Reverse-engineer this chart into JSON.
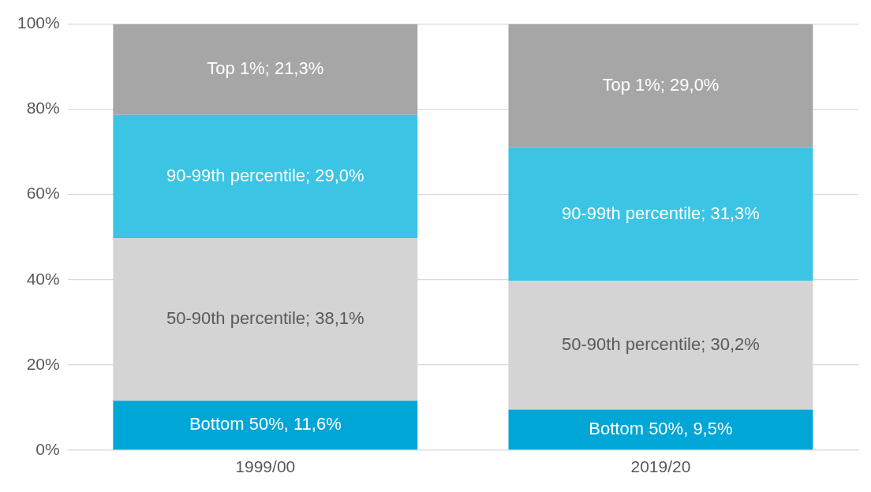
{
  "chart_data": {
    "type": "bar",
    "stacked": true,
    "categories": [
      "1999/00",
      "2019/20"
    ],
    "series": [
      {
        "color": "#00a6d6",
        "values": [
          11.6,
          9.5
        ],
        "value_labels": [
          "Bottom 50%, 11,6%",
          "Bottom 50%, 9,5%"
        ]
      },
      {
        "color": "#d4d4d4",
        "values": [
          38.1,
          30.2
        ],
        "value_labels": [
          "50-90th percentile; 38,1%",
          "50-90th percentile; 30,2%"
        ]
      },
      {
        "color": "#3bc4e3",
        "values": [
          29.0,
          31.3
        ],
        "value_labels": [
          "90-99th percentile; 29,0%",
          "90-99th percentile; 31,3%"
        ]
      },
      {
        "color": "#a6a6a6",
        "values": [
          21.3,
          29.0
        ],
        "value_labels": [
          "Top 1%; 21,3%",
          "Top 1%; 29,0%"
        ]
      }
    ],
    "ylim": [
      0,
      100
    ],
    "yticks": [
      {
        "value": 0,
        "label": "0%"
      },
      {
        "value": 20,
        "label": "20%"
      },
      {
        "value": 40,
        "label": "40%"
      },
      {
        "value": 60,
        "label": "60%"
      },
      {
        "value": 80,
        "label": "80%"
      },
      {
        "value": 100,
        "label": "100%"
      }
    ],
    "grid": "y",
    "legend": false
  }
}
